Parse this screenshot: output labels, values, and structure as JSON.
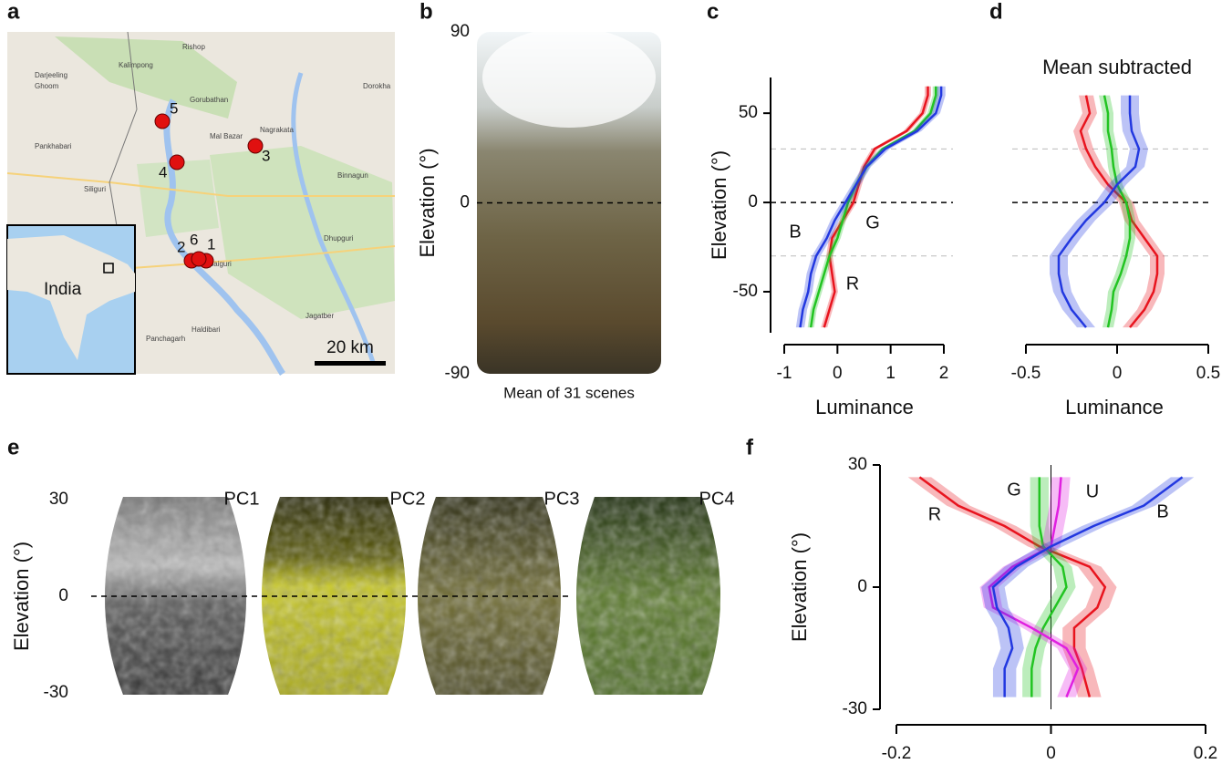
{
  "panel_labels": [
    "a",
    "b",
    "c",
    "d",
    "e",
    "f"
  ],
  "map": {
    "places": [
      "Rishop",
      "Kalimpong",
      "Darjeeling",
      "Ghoom",
      "Gorubathan",
      "Dorokha",
      "Mal Bazar",
      "Nagrakata",
      "Pankhabari",
      "Siliguri",
      "Binnagun",
      "Dhupguri",
      "Haldibari",
      "Panchagarh",
      "Jagatber",
      "lpaiguri"
    ],
    "sites": [
      "1",
      "2",
      "3",
      "4",
      "5",
      "6"
    ],
    "inset_label": "India",
    "scale": "20 km"
  },
  "chart_data": [
    {
      "type": "image",
      "ylabel": "Elevation (°)",
      "caption": "Mean of 31 scenes",
      "ylim": [
        -90,
        90
      ],
      "yticks": [
        -90,
        0,
        90
      ],
      "reference_lines": [
        0
      ]
    },
    {
      "type": "line",
      "ylabel": "Elevation (°)",
      "xlabel": "Luminance",
      "ylim": [
        -73,
        70
      ],
      "yticks": [
        -50,
        0,
        50
      ],
      "xlim": [
        -1,
        2
      ],
      "xticks": [
        -1,
        0,
        1,
        2
      ],
      "reference_lines": [
        0,
        30,
        -30
      ],
      "y": [
        -70,
        -60,
        -50,
        -40,
        -30,
        -20,
        -10,
        0,
        10,
        20,
        30,
        40,
        50,
        60,
        65
      ],
      "series": [
        {
          "name": "R",
          "color": "#e8141e",
          "error": 0.06,
          "values": [
            -0.25,
            -0.15,
            -0.05,
            -0.1,
            -0.15,
            -0.1,
            0.1,
            0.3,
            0.4,
            0.5,
            0.7,
            1.3,
            1.6,
            1.7,
            1.7
          ]
        },
        {
          "name": "G",
          "color": "#22c422",
          "error": 0.06,
          "values": [
            -0.5,
            -0.45,
            -0.35,
            -0.25,
            -0.15,
            0,
            0.1,
            0.2,
            0.35,
            0.55,
            0.85,
            1.45,
            1.75,
            1.85,
            1.85
          ]
        },
        {
          "name": "B",
          "color": "#2238e0",
          "error": 0.08,
          "values": [
            -0.7,
            -0.65,
            -0.55,
            -0.5,
            -0.4,
            -0.2,
            -0.05,
            0.15,
            0.35,
            0.55,
            0.9,
            1.5,
            1.85,
            1.95,
            1.95
          ]
        }
      ]
    },
    {
      "type": "line",
      "title": "Mean subtracted",
      "xlabel": "Luminance",
      "ylim": [
        -73,
        70
      ],
      "xlim": [
        -0.5,
        0.5
      ],
      "xticks": [
        -0.5,
        0,
        0.5
      ],
      "reference_lines": [
        0,
        30,
        -30
      ],
      "y": [
        -70,
        -60,
        -50,
        -40,
        -30,
        -20,
        -10,
        0,
        10,
        20,
        30,
        40,
        50,
        60
      ],
      "series": [
        {
          "color": "#e8141e",
          "error": 0.04,
          "values": [
            0.07,
            0.15,
            0.2,
            0.22,
            0.22,
            0.15,
            0.08,
            0.05,
            -0.05,
            -0.12,
            -0.17,
            -0.2,
            -0.15,
            -0.17
          ]
        },
        {
          "color": "#22c422",
          "error": 0.03,
          "values": [
            -0.05,
            -0.03,
            -0.02,
            0.02,
            0.05,
            0.07,
            0.07,
            0.05,
            0,
            -0.02,
            -0.03,
            -0.05,
            -0.05,
            -0.07
          ]
        },
        {
          "color": "#2238e0",
          "error": 0.05,
          "values": [
            -0.17,
            -0.25,
            -0.3,
            -0.32,
            -0.32,
            -0.25,
            -0.17,
            -0.07,
            0,
            0.1,
            0.12,
            0.08,
            0.07,
            0.07
          ]
        }
      ]
    },
    {
      "type": "image",
      "ylabel": "Elevation (°)",
      "image_labels": [
        "PC1",
        "PC2",
        "PC3",
        "PC4"
      ],
      "ylim": [
        -30,
        30
      ],
      "yticks": [
        -30,
        0,
        30
      ],
      "reference_lines": [
        0
      ]
    },
    {
      "type": "line",
      "ylabel": "Elevation (°)",
      "ylim": [
        -30,
        30
      ],
      "yticks": [
        -30,
        0,
        30
      ],
      "xlim": [
        -0.2,
        0.2
      ],
      "xticks": [
        -0.2,
        0,
        0.2
      ],
      "zero_line": true,
      "y": [
        -27,
        -20,
        -15,
        -10,
        -5,
        0,
        5,
        10,
        15,
        20,
        27
      ],
      "series": [
        {
          "name": "R",
          "color": "#e8141e",
          "error": 0.015,
          "values": [
            0.05,
            0.04,
            0.03,
            0.03,
            0.06,
            0.07,
            0.05,
            -0.015,
            -0.06,
            -0.12,
            -0.17
          ]
        },
        {
          "name": "G",
          "color": "#22c422",
          "error": 0.012,
          "values": [
            -0.025,
            -0.025,
            -0.02,
            -0.01,
            0.005,
            0.02,
            0.015,
            -0.01,
            -0.015,
            -0.015,
            -0.015
          ]
        },
        {
          "name": "U",
          "color": "#e020e0",
          "error": 0.012,
          "values": [
            0.02,
            0.035,
            0.02,
            -0.025,
            -0.075,
            -0.08,
            -0.05,
            0,
            0.005,
            0.01,
            0.013
          ]
        },
        {
          "name": "B",
          "color": "#2238e0",
          "error": 0.015,
          "values": [
            -0.06,
            -0.06,
            -0.05,
            -0.055,
            -0.07,
            -0.075,
            -0.045,
            0,
            0.055,
            0.12,
            0.17
          ]
        }
      ]
    }
  ]
}
